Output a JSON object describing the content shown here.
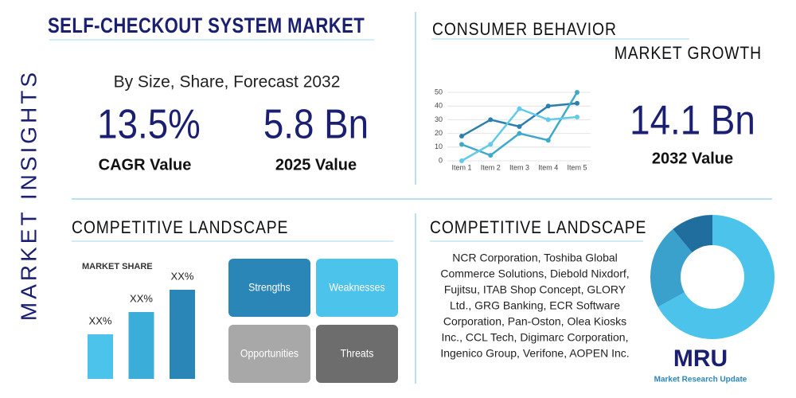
{
  "header": {
    "title": "SELF-CHECKOUT SYSTEM MARKET",
    "side_label": "MARKET INSIGHTS"
  },
  "stats": {
    "subtitle": "By Size, Share, Forecast 2032",
    "cagr": {
      "value": "13.5%",
      "label": "CAGR Value"
    },
    "size_2025": {
      "value": "5.8 Bn",
      "label": "2025 Value"
    }
  },
  "consumer": {
    "title": "CONSUMER BEHAVIOR",
    "subtitle": "MARKET GROWTH",
    "value": "14.1 Bn",
    "value_label": "2032 Value",
    "chart_data": {
      "type": "line",
      "categories": [
        "Item 1",
        "Item 2",
        "Item 3",
        "Item 4",
        "Item 5"
      ],
      "series": [
        {
          "color": "#2b7fae",
          "values": [
            18,
            30,
            25,
            40,
            42
          ]
        },
        {
          "color": "#3fa9c9",
          "values": [
            12,
            4,
            20,
            15,
            50
          ]
        },
        {
          "color": "#63cbe8",
          "values": [
            0,
            12,
            38,
            30,
            32
          ]
        }
      ],
      "ylim": [
        0,
        50
      ],
      "yticks": [
        0,
        10,
        20,
        30,
        40,
        50
      ]
    }
  },
  "share": {
    "title": "COMPETITIVE LANDSCAPE",
    "chart_data": {
      "type": "bar",
      "title": "MARKET SHARE",
      "values": [
        20,
        30,
        40
      ],
      "value_labels": [
        "XX%",
        "XX%",
        "XX%"
      ],
      "colors": [
        "#4cc3ea",
        "#3aaed8",
        "#2b86b8"
      ]
    },
    "swot": [
      "Strengths",
      "Weaknesses",
      "Opportunities",
      "Threats"
    ]
  },
  "competitors": {
    "title": "COMPETITIVE LANDSCAPE",
    "lines": [
      "NCR Corporation, Toshiba Global",
      "Commerce Solutions, Diebold Nixdorf,",
      "Fujitsu, ITAB Shop Concept, GLORY",
      "Ltd., GRG Banking, ECR Software",
      "Corporation, Pan-Oston, Olea Kiosks",
      "Inc., CCL Tech, Digimarc Corporation,",
      "Ingenico Group, Verifone, AOPEN Inc."
    ],
    "chart_data": {
      "type": "pie",
      "values": [
        67,
        22,
        11
      ],
      "colors": [
        "#4cc3ea",
        "#3aa0cc",
        "#1f6e9e"
      ]
    }
  },
  "logo": {
    "mark": "MRU",
    "text": "Market Research Update"
  }
}
